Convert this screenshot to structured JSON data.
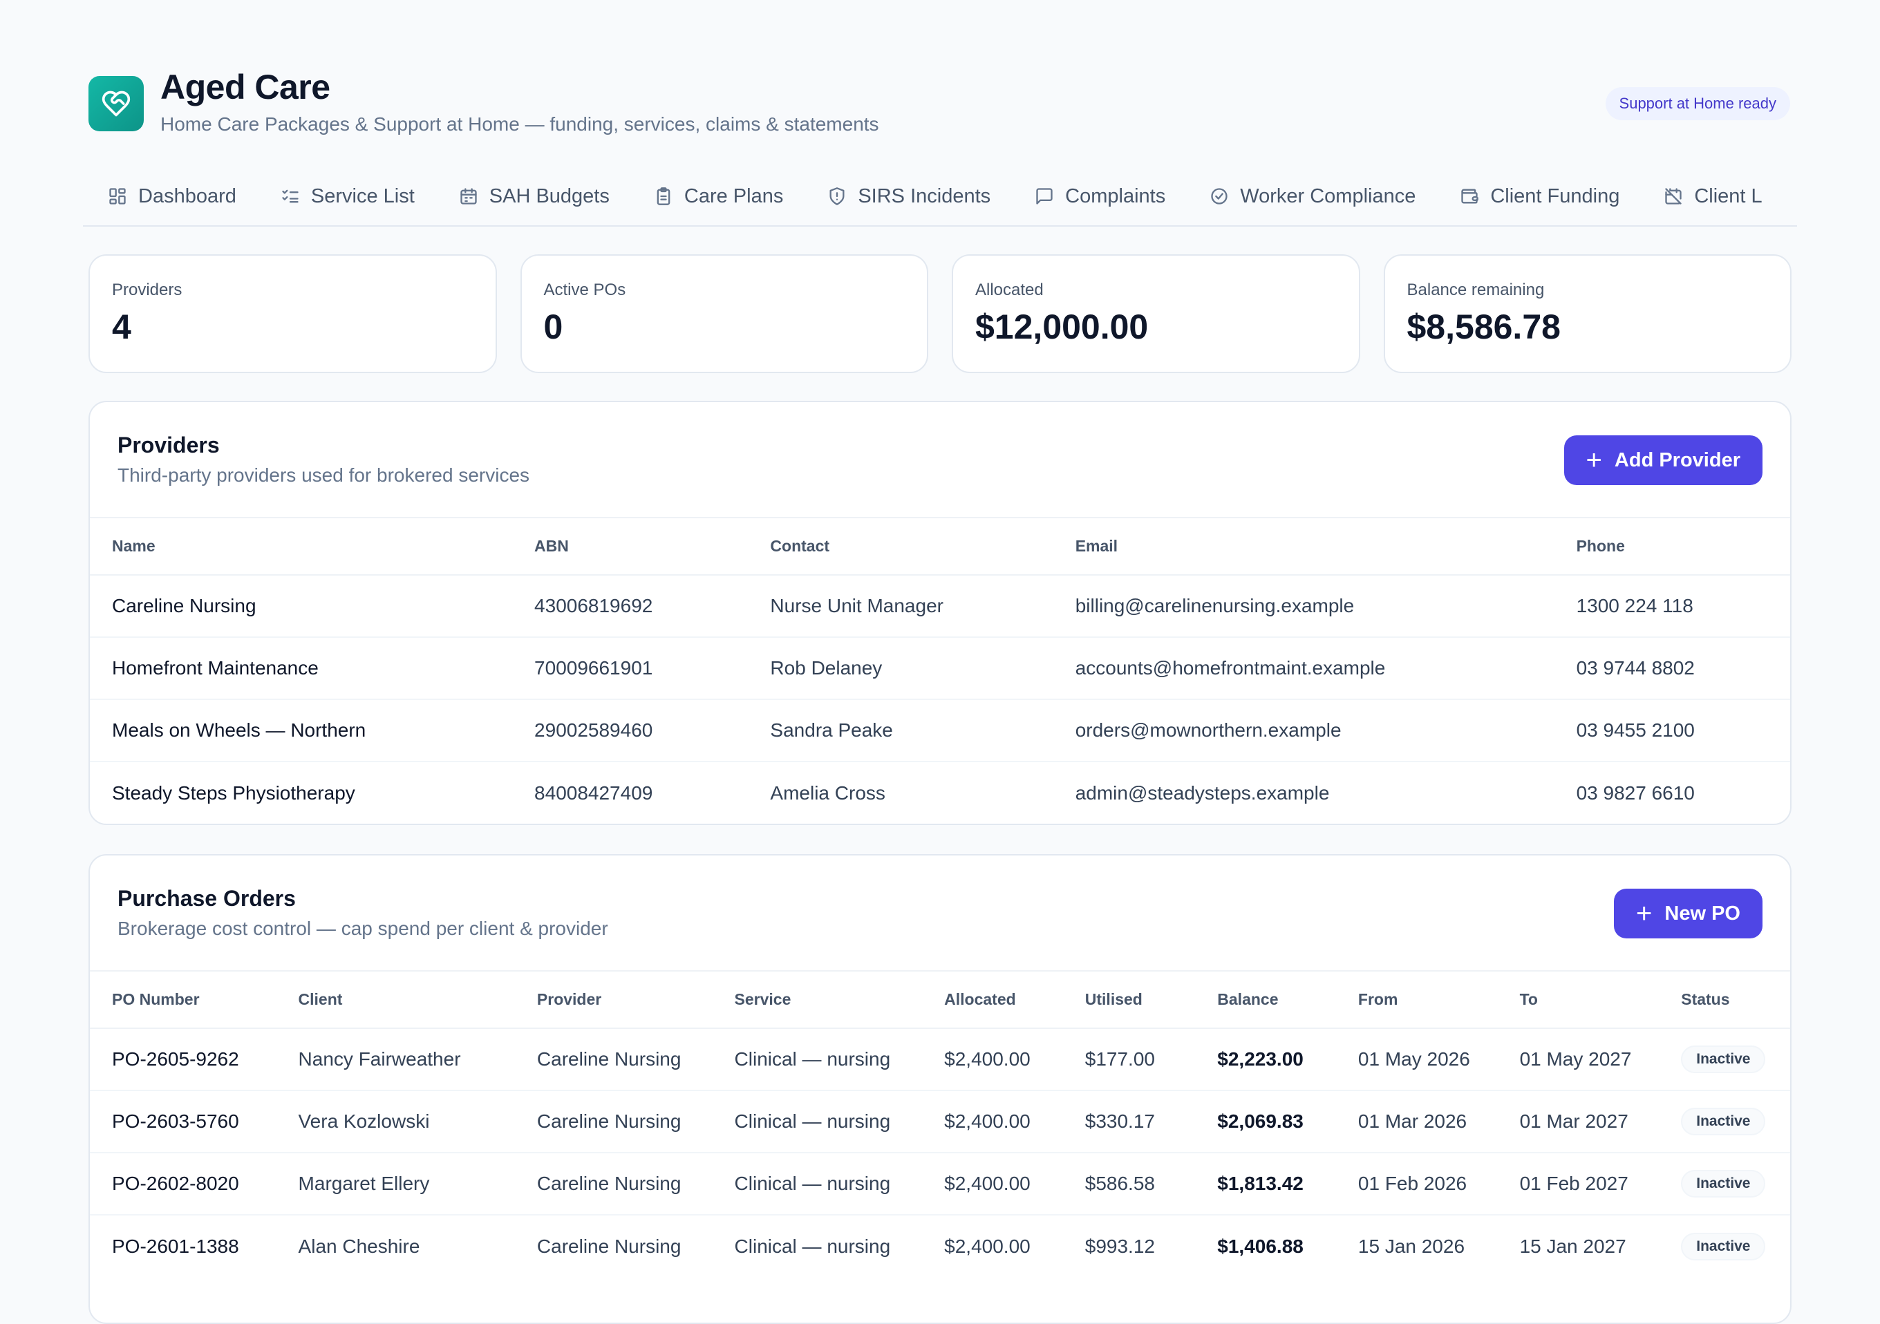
{
  "header": {
    "title": "Aged Care",
    "subtitle": "Home Care Packages & Support at Home — funding, services, claims & statements",
    "badge": "Support at Home ready"
  },
  "tabs": [
    {
      "label": "Dashboard",
      "icon": "dashboard-icon"
    },
    {
      "label": "Service List",
      "icon": "list-check-icon"
    },
    {
      "label": "SAH Budgets",
      "icon": "calendar-icon"
    },
    {
      "label": "Care Plans",
      "icon": "clipboard-icon"
    },
    {
      "label": "SIRS Incidents",
      "icon": "shield-icon"
    },
    {
      "label": "Complaints",
      "icon": "message-icon"
    },
    {
      "label": "Worker Compliance",
      "icon": "check-circle-icon"
    },
    {
      "label": "Client Funding",
      "icon": "wallet-icon"
    },
    {
      "label": "Client L",
      "icon": "calendar-off-icon"
    }
  ],
  "stats": [
    {
      "label": "Providers",
      "value": "4"
    },
    {
      "label": "Active POs",
      "value": "0"
    },
    {
      "label": "Allocated",
      "value": "$12,000.00"
    },
    {
      "label": "Balance remaining",
      "value": "$8,586.78"
    }
  ],
  "providers": {
    "title": "Providers",
    "subtitle": "Third-party providers used for brokered services",
    "add_label": "Add Provider",
    "columns": [
      "Name",
      "ABN",
      "Contact",
      "Email",
      "Phone"
    ],
    "rows": [
      [
        "Careline Nursing",
        "43006819692",
        "Nurse Unit Manager",
        "billing@carelinenursing.example",
        "1300 224 118"
      ],
      [
        "Homefront Maintenance",
        "70009661901",
        "Rob Delaney",
        "accounts@homefrontmaint.example",
        "03 9744 8802"
      ],
      [
        "Meals on Wheels — Northern",
        "29002589460",
        "Sandra Peake",
        "orders@mownorthern.example",
        "03 9455 2100"
      ],
      [
        "Steady Steps Physiotherapy",
        "84008427409",
        "Amelia Cross",
        "admin@steadysteps.example",
        "03 9827 6610"
      ]
    ]
  },
  "purchase_orders": {
    "title": "Purchase Orders",
    "subtitle": "Brokerage cost control — cap spend per client & provider",
    "new_label": "New PO",
    "columns": [
      "PO Number",
      "Client",
      "Provider",
      "Service",
      "Allocated",
      "Utilised",
      "Balance",
      "From",
      "To",
      "Status"
    ],
    "rows": [
      [
        "PO-2605-9262",
        "Nancy Fairweather",
        "Careline Nursing",
        "Clinical — nursing",
        "$2,400.00",
        "$177.00",
        "$2,223.00",
        "01 May 2026",
        "01 May 2027",
        "Inactive"
      ],
      [
        "PO-2603-5760",
        "Vera Kozlowski",
        "Careline Nursing",
        "Clinical — nursing",
        "$2,400.00",
        "$330.17",
        "$2,069.83",
        "01 Mar 2026",
        "01 Mar 2027",
        "Inactive"
      ],
      [
        "PO-2602-8020",
        "Margaret Ellery",
        "Careline Nursing",
        "Clinical — nursing",
        "$2,400.00",
        "$586.58",
        "$1,813.42",
        "01 Feb 2026",
        "01 Feb 2027",
        "Inactive"
      ],
      [
        "PO-2601-1388",
        "Alan Cheshire",
        "Careline Nursing",
        "Clinical — nursing",
        "$2,400.00",
        "$993.12",
        "$1,406.88",
        "15 Jan 2026",
        "15 Jan 2027",
        "Inactive"
      ]
    ]
  }
}
